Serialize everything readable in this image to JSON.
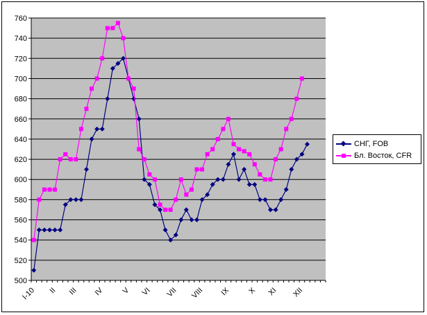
{
  "chart_data": {
    "type": "line",
    "title": "",
    "xlabel": "",
    "ylabel": "",
    "ylim": [
      500,
      760
    ],
    "yticks": [
      500,
      520,
      540,
      560,
      580,
      600,
      620,
      640,
      660,
      680,
      700,
      720,
      740,
      760
    ],
    "grid": "horizontal",
    "legend_position": "right",
    "x_tick_labels": [
      "I-10",
      "II",
      "III",
      "IV",
      "V",
      "VI",
      "VII",
      "VIII",
      "IX",
      "X",
      "XI",
      "XII"
    ],
    "x_tick_index": [
      0,
      4,
      8,
      13,
      18,
      22,
      27,
      32,
      37,
      42,
      46,
      51
    ],
    "num_points": 56,
    "plot_background": "#c0c0c0",
    "series": [
      {
        "name": "СНГ, FOB",
        "color": "#000080",
        "marker": "diamond",
        "values": [
          510,
          550,
          550,
          550,
          550,
          550,
          575,
          580,
          580,
          580,
          610,
          640,
          650,
          650,
          680,
          710,
          715,
          720,
          700,
          680,
          660,
          600,
          595,
          575,
          570,
          550,
          540,
          545,
          560,
          570,
          560,
          560,
          580,
          585,
          595,
          600,
          600,
          615,
          625,
          600,
          610,
          595,
          595,
          580,
          580,
          570,
          570,
          580,
          590,
          610,
          620,
          625,
          635
        ]
      },
      {
        "name": "Бл. Восток, CFR",
        "color": "#ff00ff",
        "marker": "square",
        "values": [
          540,
          580,
          590,
          590,
          590,
          620,
          625,
          620,
          620,
          650,
          670,
          690,
          700,
          720,
          750,
          750,
          755,
          740,
          700,
          690,
          630,
          620,
          605,
          600,
          575,
          570,
          570,
          580,
          600,
          585,
          590,
          610,
          610,
          625,
          630,
          640,
          650,
          660,
          635,
          630,
          628,
          625,
          615,
          605,
          600,
          600,
          620,
          630,
          650,
          660,
          680,
          700
        ]
      }
    ]
  }
}
